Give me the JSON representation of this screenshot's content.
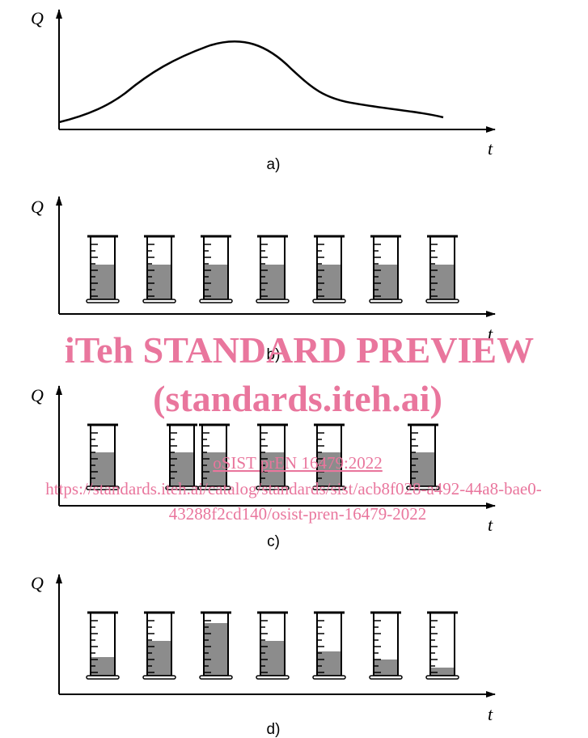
{
  "panels": [
    {
      "y_axis": "Q",
      "x_axis": "t",
      "label": "a)"
    },
    {
      "y_axis": "Q",
      "x_axis": "t",
      "label": "b)"
    },
    {
      "y_axis": "Q",
      "x_axis": "t",
      "label": "c)"
    },
    {
      "y_axis": "Q",
      "x_axis": "t",
      "label": "d)"
    }
  ],
  "watermark": {
    "title": "iTeh STANDARD PREVIEW",
    "subtitle": "(standards.iteh.ai)",
    "document": "oSIST prEN 16479:2022",
    "url_line1": "https://standards.iteh.ai/catalog/standards/sist/acb8f028-a492-44a8-bae0-",
    "url_line2": "43288f2cd140/osist-pren-16479-2022"
  }
}
